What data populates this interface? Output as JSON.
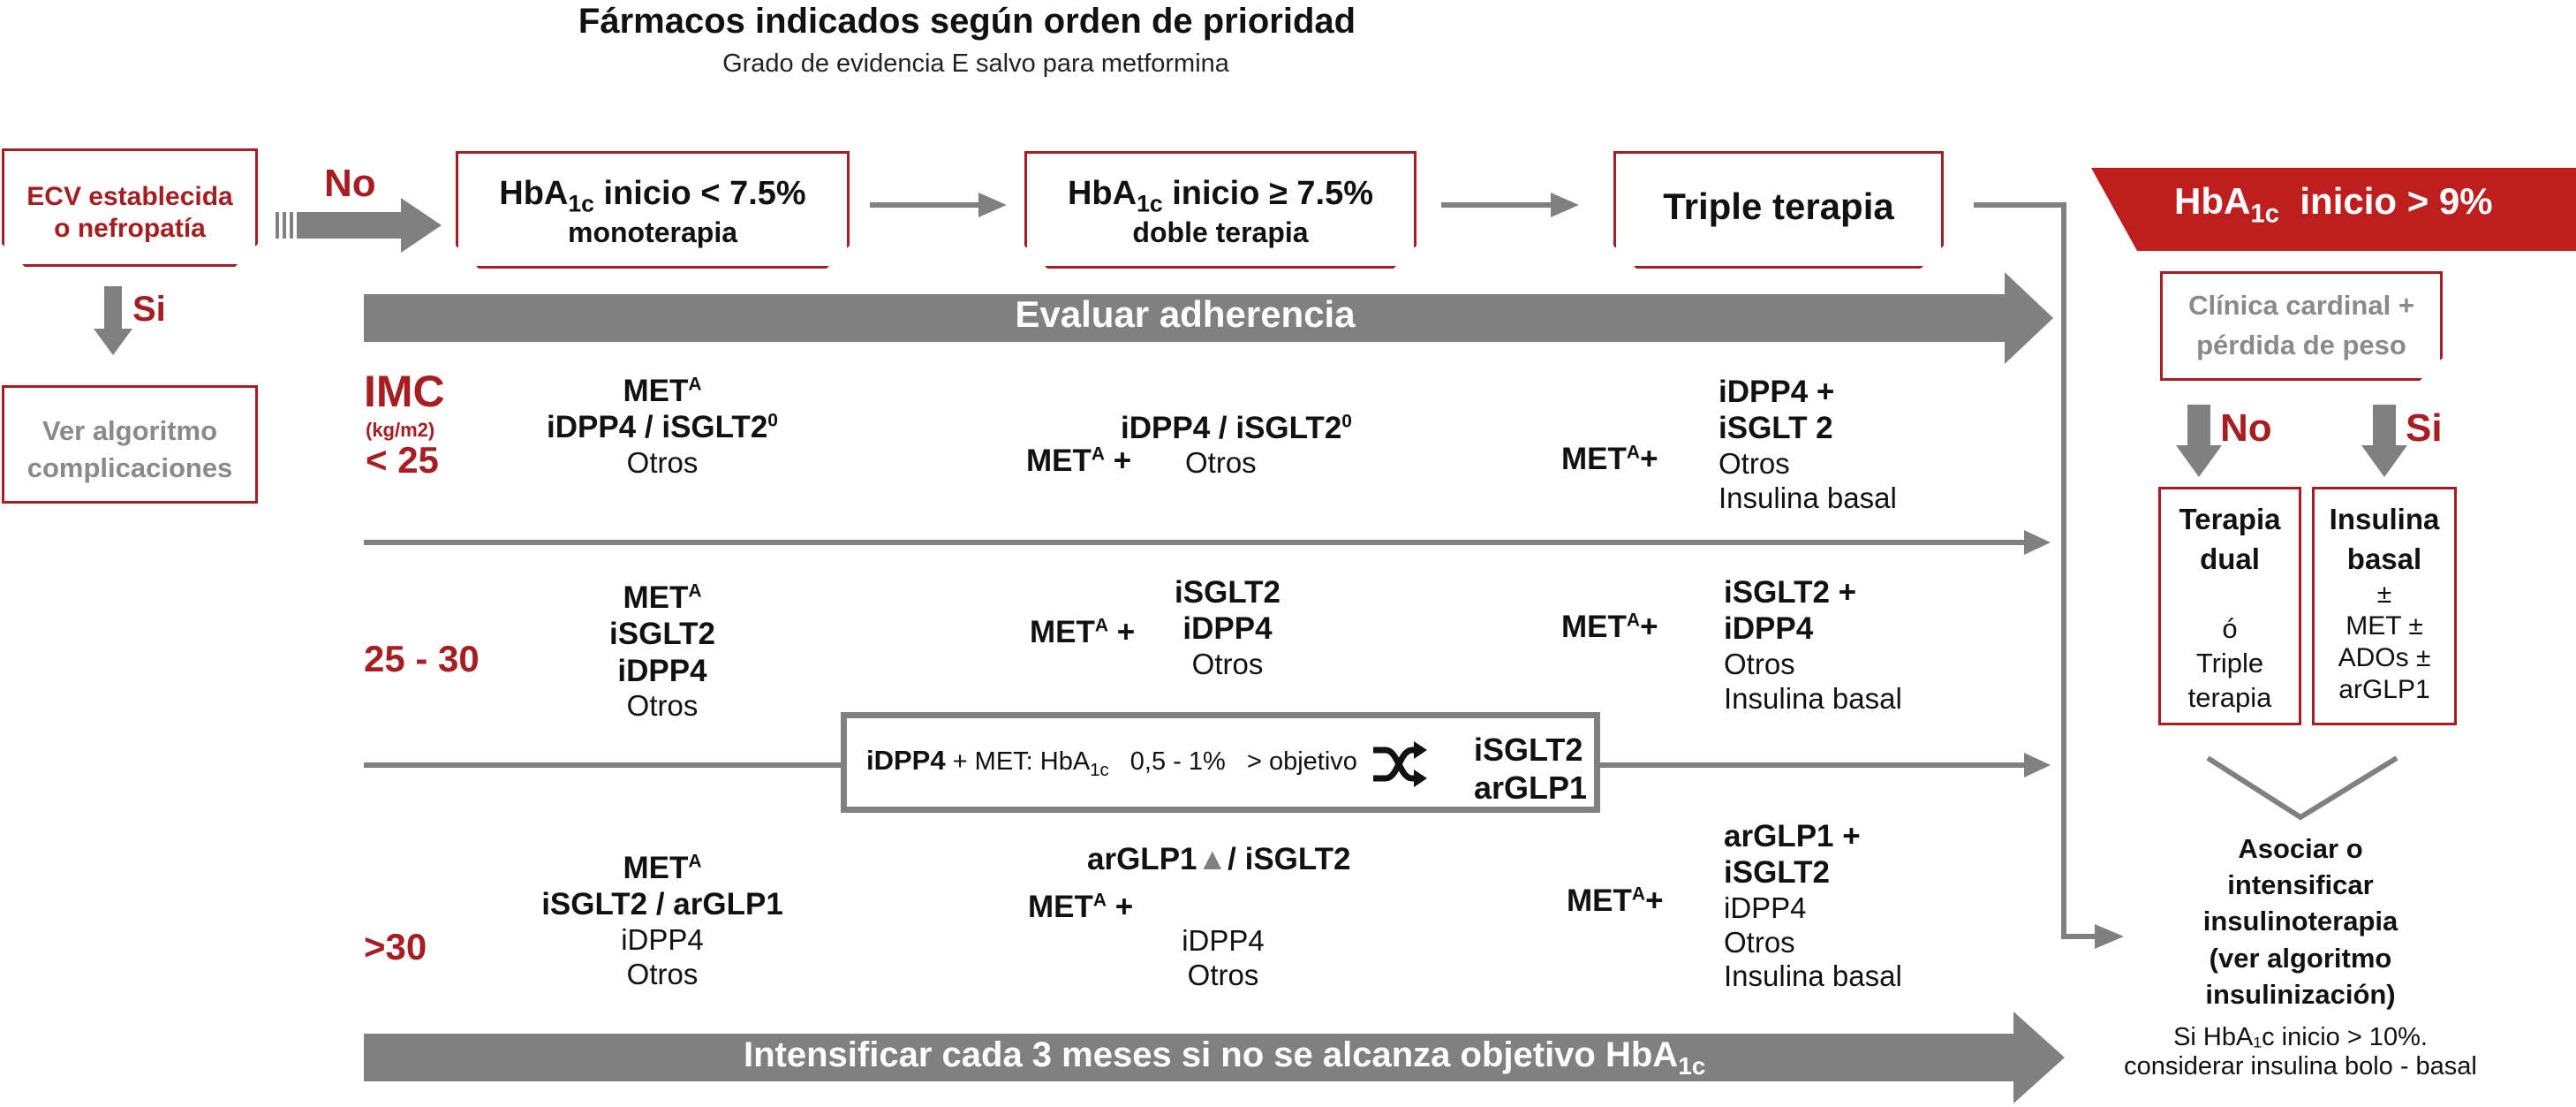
{
  "header": {
    "title": "Fármacos indicados según orden de prioridad",
    "subtitle": "Grado de evidencia  E salvo para metformina"
  },
  "ecv": {
    "line1": "ECV establecida",
    "line2": "o nefropatía"
  },
  "no_label": "No",
  "si_label": "Si",
  "ver_algoritmo": {
    "line1": "Ver algoritmo",
    "line2": "complicaciones"
  },
  "boxes": {
    "b1": {
      "hba": "HbA",
      "sub": "1c",
      "rest": " inicio  < 7.5%",
      "line2": "monoterapia"
    },
    "b2": {
      "hba": "HbA",
      "sub": "1c",
      "rest": " inicio ≥ 7.5%",
      "line2": "doble terapia"
    },
    "b3": {
      "label": "Triple terapia"
    }
  },
  "arrows": {
    "evaluar": "Evaluar adherencia",
    "intensificar": "Intensificar cada 3 meses si no se alcanza objetivo HbA",
    "intensificar_sub": "1c"
  },
  "imc": {
    "title": "IMC",
    "unit": "(kg/m2)",
    "lt25": "< 25",
    "r2": "25 - 30",
    "r3": ">30"
  },
  "met": {
    "label": "MET",
    "sup": "A",
    "plus": "+"
  },
  "row1": {
    "mono": {
      "l1": "iDPP4 / iSGLT2",
      "l1_sup": "0",
      "l2": "Otros"
    },
    "doble": {
      "l1": "iDPP4 / iSGLT2",
      "l1_sup": "0",
      "l2": "Otros"
    },
    "triple": {
      "l1": "iDPP4  +",
      "l2": "iSGLT 2",
      "l3": "Otros",
      "l4": "Insulina  basal"
    }
  },
  "row2": {
    "mono": {
      "l1": "iSGLT2",
      "l2": "iDPP4",
      "l3": "Otros"
    },
    "doble": {
      "l1": "iSGLT2",
      "l2": "iDPP4",
      "l3": "Otros"
    },
    "triple": {
      "l1": "iSGLT2  +",
      "l2": "iDPP4",
      "l3": "Otros",
      "l4": "Insulina  basal"
    }
  },
  "row3": {
    "mono": {
      "l1": "iSGLT2 / arGLP1",
      "l2": "iDPP4",
      "l3": "Otros"
    },
    "doble": {
      "l1a": "arGLP1",
      "l1b": "▲",
      "l1c": "/ iSGLT2",
      "l2": "iDPP4",
      "l3": "Otros"
    },
    "triple": {
      "l1": "arGLP1  +",
      "l2": "iSGLT2",
      "l3": "iDPP4",
      "l4": "Otros",
      "l5": "Insulina  basal"
    }
  },
  "switch_box": {
    "bold": "iDPP4",
    "text": " + MET: HbA",
    "sub": "1c",
    "text2": "   0,5 - 1%   > objetivo",
    "r1": "iSGLT2",
    "r2": "arGLP1"
  },
  "right": {
    "banner_hba": "HbA",
    "banner_sub": "1c",
    "banner_rest": "  inicio > 9%",
    "clinica": {
      "l1": "Clínica cardinal +",
      "l2": "pérdida de peso"
    },
    "no": "No",
    "si": "Si",
    "dual": {
      "l1": "Terapia",
      "l2": "dual",
      "l3": "ó",
      "l4": "Triple",
      "l5": "terapia"
    },
    "insulina": {
      "l1": "Insulina",
      "l2": "basal",
      "l3": "±",
      "l4": "MET ±",
      "l5": "ADOs ±",
      "l6": "arGLP1"
    },
    "asociar": {
      "l1": "Asociar o",
      "l2": "intensificar",
      "l3": "insulinoterapia",
      "l4": "(ver algoritmo",
      "l5": "insulinización)"
    },
    "si_hba": {
      "l1": "Si HbA₁c inicio > 10%.",
      "l2": "considerar insulina bolo - basal"
    }
  },
  "colors": {
    "red": "#a71e22",
    "gray_arrow": "#808080",
    "light_gray_text": "#8a8a8a"
  }
}
